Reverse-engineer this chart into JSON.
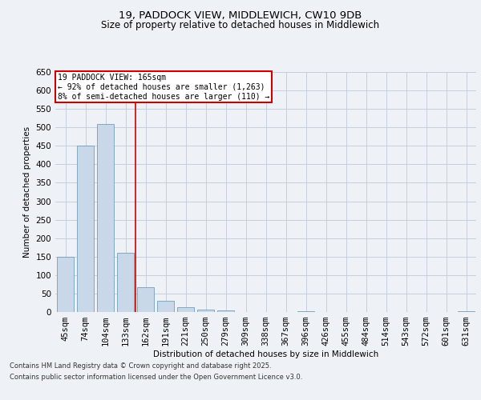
{
  "title_line1": "19, PADDOCK VIEW, MIDDLEWICH, CW10 9DB",
  "title_line2": "Size of property relative to detached houses in Middlewich",
  "xlabel": "Distribution of detached houses by size in Middlewich",
  "ylabel": "Number of detached properties",
  "categories": [
    "45sqm",
    "74sqm",
    "104sqm",
    "133sqm",
    "162sqm",
    "191sqm",
    "221sqm",
    "250sqm",
    "279sqm",
    "309sqm",
    "338sqm",
    "367sqm",
    "396sqm",
    "426sqm",
    "455sqm",
    "484sqm",
    "514sqm",
    "543sqm",
    "572sqm",
    "601sqm",
    "631sqm"
  ],
  "values": [
    150,
    450,
    510,
    160,
    68,
    30,
    13,
    7,
    4,
    0,
    0,
    0,
    3,
    0,
    0,
    0,
    0,
    0,
    0,
    0,
    3
  ],
  "bar_color": "#c8d8e8",
  "bar_edge_color": "#6090b0",
  "grid_color": "#c0c8d8",
  "background_color": "#eef2f6",
  "vline_x": 3.5,
  "vline_color": "#cc0000",
  "annotation_text": "19 PADDOCK VIEW: 165sqm\n← 92% of detached houses are smaller (1,263)\n8% of semi-detached houses are larger (110) →",
  "annotation_box_color": "#ffffff",
  "annotation_box_edge": "#cc0000",
  "footer_line1": "Contains HM Land Registry data © Crown copyright and database right 2025.",
  "footer_line2": "Contains public sector information licensed under the Open Government Licence v3.0.",
  "ylim": [
    0,
    650
  ],
  "yticks": [
    0,
    50,
    100,
    150,
    200,
    250,
    300,
    350,
    400,
    450,
    500,
    550,
    600,
    650
  ]
}
